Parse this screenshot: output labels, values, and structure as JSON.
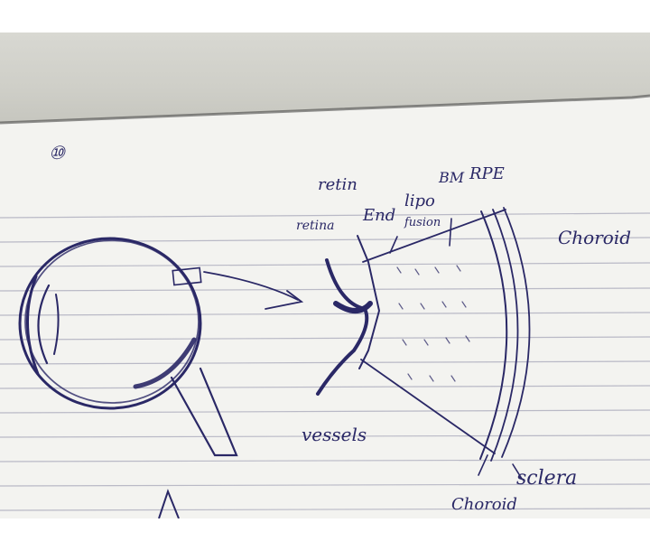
{
  "notes": {
    "page_number": "⑩",
    "labels": {
      "retin": "retin",
      "retina": "retina",
      "end": "End",
      "lipo": "lipo",
      "fusion": "fusion",
      "bm": "BM",
      "rpe": "RPE",
      "choroid_top": "Choroid",
      "vessels": "vessels",
      "sclera": "sclera",
      "choroid_bottom": "Choroid"
    }
  },
  "colors": {
    "ink": "#2a2866",
    "paper": "#f4f4f1",
    "rule_line": "#b9b9c6",
    "desk": "#cfcfc8"
  }
}
